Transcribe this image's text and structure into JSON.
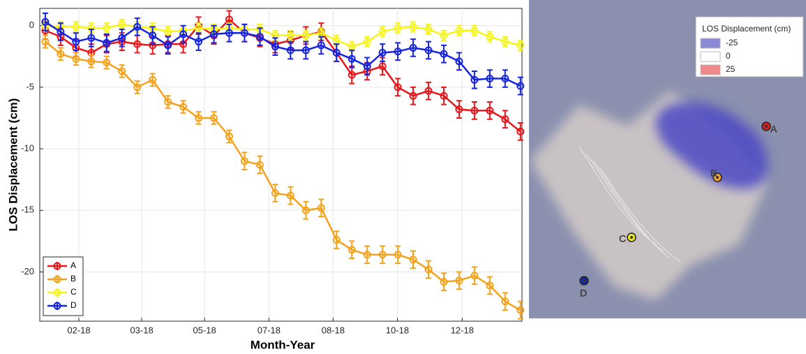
{
  "chart_data": {
    "type": "line",
    "x_label": "Month-Year",
    "y_label": "LOS Displacement (cm)",
    "x": [
      0,
      1,
      2,
      3,
      4,
      5,
      6,
      7,
      8,
      9,
      10,
      11,
      12,
      13,
      14,
      15,
      16,
      17,
      18,
      19,
      20,
      21,
      22,
      23,
      24,
      25,
      26,
      27,
      28,
      29,
      30,
      31
    ],
    "xlim": [
      -0.36,
      31.1
    ],
    "xticks": [
      {
        "value": 2.19,
        "label": "02-18"
      },
      {
        "value": 6.29,
        "label": "03-18"
      },
      {
        "value": 10.39,
        "label": "05-18"
      },
      {
        "value": 14.59,
        "label": "07-18"
      },
      {
        "value": 18.78,
        "label": "08-18"
      },
      {
        "value": 22.97,
        "label": "10-18"
      },
      {
        "value": 27.2,
        "label": "12-18"
      }
    ],
    "ylim": [
      -24,
      1.4
    ],
    "yticks": [
      0,
      -5,
      -10,
      -15,
      -20
    ],
    "grid": true,
    "legend": "lower left",
    "series": [
      {
        "name": "A",
        "color": "#e8161b",
        "values": [
          -0.4,
          -0.9,
          -1.8,
          -2.2,
          -1.5,
          -1.3,
          -1.5,
          -1.6,
          -1.5,
          -1.5,
          0,
          -0.8,
          0.5,
          -0.6,
          -1,
          -1.5,
          -1.2,
          -0.8,
          -0.5,
          -2.2,
          -4,
          -3.7,
          -3.3,
          -5,
          -5.7,
          -5.3,
          -5.7,
          -6.8,
          -6.9,
          -6.9,
          -7.6,
          -8.6
        ],
        "errors": [
          0.7,
          0.7,
          0.7,
          0.7,
          0.7,
          0.7,
          0.7,
          0.7,
          0.7,
          0.7,
          0.7,
          0.7,
          0.7,
          0.7,
          0.7,
          0.7,
          0.7,
          0.7,
          0.7,
          0.7,
          0.7,
          0.7,
          0.7,
          0.7,
          0.7,
          0.7,
          0.7,
          0.7,
          0.7,
          0.7,
          0.7,
          0.7
        ]
      },
      {
        "name": "B",
        "color": "#f5a21b",
        "values": [
          -1.3,
          -2.3,
          -2.7,
          -2.9,
          -3.0,
          -3.7,
          -5.0,
          -4.4,
          -6.2,
          -6.6,
          -7.5,
          -7.5,
          -9.0,
          -11.0,
          -11.3,
          -13.6,
          -13.8,
          -15.0,
          -14.8,
          -17.4,
          -18.2,
          -18.6,
          -18.6,
          -18.6,
          -19.0,
          -19.8,
          -20.8,
          -20.7,
          -20.3,
          -21.1,
          -22.4,
          -23.1
        ],
        "errors": [
          0.5,
          0.5,
          0.5,
          0.5,
          0.5,
          0.5,
          0.5,
          0.5,
          0.5,
          0.5,
          0.5,
          0.5,
          0.5,
          0.7,
          0.7,
          0.7,
          0.7,
          0.7,
          0.7,
          0.7,
          0.7,
          0.7,
          0.7,
          0.7,
          0.7,
          0.7,
          0.7,
          0.7,
          0.7,
          0.7,
          0.7,
          0.7
        ]
      },
      {
        "name": "C",
        "color": "#f5f51a",
        "values": [
          0,
          -0.1,
          -0.1,
          -0.2,
          -0.2,
          0.1,
          -0.1,
          -0.2,
          -0.5,
          -0.4,
          -0.2,
          -0.3,
          -0.2,
          -0.3,
          -0.3,
          -0.8,
          -0.8,
          -0.8,
          -0.6,
          -1.2,
          -1.7,
          -1.3,
          -0.5,
          -0.2,
          -0.1,
          -0.3,
          -0.8,
          -0.4,
          -0.4,
          -0.9,
          -1.3,
          -1.6
        ],
        "errors": [
          0.4,
          0.4,
          0.4,
          0.4,
          0.4,
          0.4,
          0.4,
          0.4,
          0.4,
          0.4,
          0.4,
          0.4,
          0.4,
          0.4,
          0.4,
          0.4,
          0.4,
          0.4,
          0.4,
          0.4,
          0.4,
          0.4,
          0.4,
          0.4,
          0.4,
          0.4,
          0.4,
          0.4,
          0.4,
          0.4,
          0.4,
          0.4
        ]
      },
      {
        "name": "D",
        "color": "#1524e0",
        "values": [
          0.3,
          -0.5,
          -1.3,
          -1.0,
          -1.4,
          -1.0,
          -0.1,
          -0.8,
          -1.6,
          -0.7,
          -1.3,
          -0.7,
          -0.6,
          -0.6,
          -0.9,
          -1.7,
          -2,
          -2,
          -1.6,
          -2.2,
          -2.7,
          -3.3,
          -2.2,
          -2.1,
          -1.8,
          -2,
          -2.3,
          -2.9,
          -4.4,
          -4.3,
          -4.3,
          -4.9
        ],
        "errors": [
          0.7,
          0.7,
          0.7,
          0.7,
          0.7,
          0.7,
          0.7,
          0.7,
          0.7,
          0.7,
          0.7,
          0.7,
          0.7,
          0.7,
          0.7,
          0.7,
          0.7,
          0.7,
          0.7,
          0.7,
          0.7,
          0.7,
          0.7,
          0.7,
          0.7,
          0.7,
          0.7,
          0.7,
          0.7,
          0.7,
          0.7,
          0.7
        ]
      }
    ]
  },
  "map": {
    "legend": {
      "title": "LOS Displacement (cm)",
      "items": [
        {
          "value": -25,
          "color": "#8a8ad6"
        },
        {
          "value": 0,
          "color": "#ffffff"
        },
        {
          "value": 25,
          "color": "#f08a8a"
        }
      ]
    },
    "points": [
      {
        "label": "A",
        "color": "#d42020"
      },
      {
        "label": "B",
        "color": "#f0a030"
      },
      {
        "label": "C",
        "color": "#e8e820"
      },
      {
        "label": "D",
        "color": "#1a2a9a"
      }
    ]
  }
}
